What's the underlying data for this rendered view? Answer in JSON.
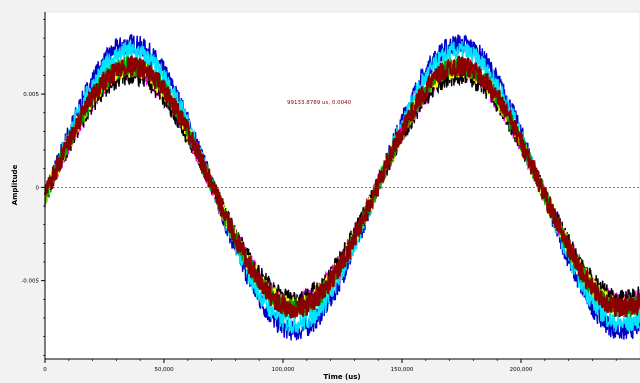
{
  "chart_data": {
    "type": "line",
    "title": "",
    "xlabel": "Time (us)",
    "ylabel": "Amplitude",
    "xlim": [
      0,
      250000
    ],
    "ylim": [
      -0.0092,
      0.0094
    ],
    "x_ticks": [
      0,
      50000,
      100000,
      150000,
      200000
    ],
    "x_tick_labels": [
      "0",
      "50,000",
      "100,000",
      "150,000",
      "200,000"
    ],
    "y_ticks": [
      0.005,
      0,
      -0.005
    ],
    "y_tick_labels": [
      "0.005",
      "0",
      "-0.005"
    ],
    "marker_text": "99133.8789 us, 0.0040",
    "grid": false,
    "period_us": 138000,
    "phase_offset_us": 1500,
    "series": [
      {
        "color": "#0000c8",
        "amplitude": 0.0077,
        "offset": 0.0
      },
      {
        "color": "#00e5ff",
        "amplitude": 0.0073,
        "offset": 0.0
      },
      {
        "color": "#ff00ff",
        "amplitude": 0.0062,
        "offset": 0.0
      },
      {
        "color": "#000000",
        "amplitude": 0.006,
        "offset": 0.0
      },
      {
        "color": "#ffff00",
        "amplitude": 0.0064,
        "offset": 0.0
      },
      {
        "color": "#00a000",
        "amplitude": 0.0065,
        "offset": 0.0
      },
      {
        "color": "#8b0000",
        "amplitude": 0.0065,
        "offset": 0.0
      }
    ],
    "zero_line_color": "#ff0000"
  }
}
